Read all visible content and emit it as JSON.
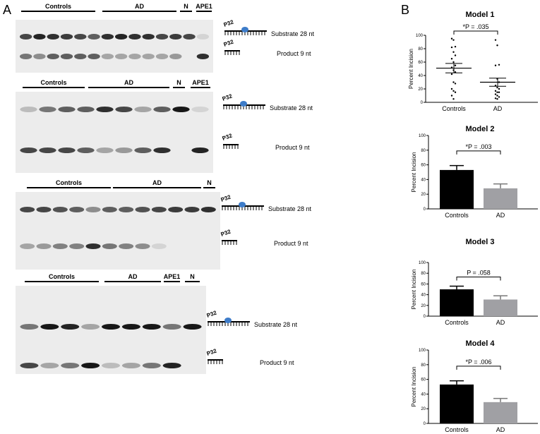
{
  "panel_a": {
    "label": "A",
    "gels": [
      {
        "headers": [
          "Controls",
          "AD",
          "N",
          "APE1"
        ],
        "substrate": "Substrate 28 nt",
        "product": "Product 9 nt",
        "tag": "P32"
      },
      {
        "headers": [
          "Controls",
          "AD",
          "N",
          "APE1"
        ],
        "substrate": "Substrate 28 nt",
        "product": "Product 9 nt",
        "tag": "P32"
      },
      {
        "headers": [
          "Controls",
          "AD",
          "N"
        ],
        "substrate": "Substrate 28 nt",
        "product": "Product 9 nt",
        "tag": "P32"
      },
      {
        "headers": [
          "Controls",
          "AD",
          "APE1",
          "N"
        ],
        "substrate": "Substrate 28 nt",
        "product": "Product 9 nt",
        "tag": "P32"
      }
    ]
  },
  "panel_b": {
    "label": "B"
  },
  "colors": {
    "controls": "#000000",
    "ad": "#a0a0a4",
    "lesion": "#3d7cc9"
  },
  "chart_data": [
    {
      "type": "scatter",
      "title": "Model 1",
      "ylabel": "Percent Incision",
      "categories": [
        "Controls",
        "AD"
      ],
      "ylim": [
        0,
        100
      ],
      "yticks": [
        "0",
        "20",
        "40",
        "60",
        "80",
        "100"
      ],
      "points": [
        [
          95,
          93,
          83,
          82,
          75,
          70,
          65,
          60,
          55,
          52,
          48,
          45,
          42,
          30,
          28,
          20,
          17,
          15,
          10,
          5
        ],
        [
          93,
          85,
          56,
          55,
          35,
          30,
          25,
          22,
          20,
          17,
          15,
          15,
          12,
          10,
          8,
          6,
          5
        ]
      ],
      "means": [
        51,
        30
      ],
      "sem": [
        7,
        6
      ],
      "annotation": "*P = .035"
    },
    {
      "type": "bar",
      "title": "Model 2",
      "ylabel": "Percent Incision",
      "categories": [
        "Controls",
        "AD"
      ],
      "ylim": [
        0,
        100
      ],
      "yticks": [
        "0",
        "20",
        "40",
        "60",
        "80",
        "100"
      ],
      "values": [
        53,
        28
      ],
      "sem": [
        6,
        6
      ],
      "annotation": "*P = .003"
    },
    {
      "type": "bar",
      "title": "Model 3",
      "ylabel": "Percent Incision",
      "categories": [
        "Controls",
        "AD"
      ],
      "ylim": [
        0,
        100
      ],
      "yticks": [
        "0",
        "20",
        "40",
        "60",
        "80",
        "100"
      ],
      "values": [
        50,
        31
      ],
      "sem": [
        6,
        7
      ],
      "annotation": "P = .058"
    },
    {
      "type": "bar",
      "title": "Model 4",
      "ylabel": "Percent Incision",
      "categories": [
        "Controls",
        "AD"
      ],
      "ylim": [
        0,
        100
      ],
      "yticks": [
        "0",
        "20",
        "40",
        "60",
        "80",
        "100"
      ],
      "values": [
        53,
        29
      ],
      "sem": [
        5,
        5
      ],
      "annotation": "*P = .006"
    }
  ]
}
